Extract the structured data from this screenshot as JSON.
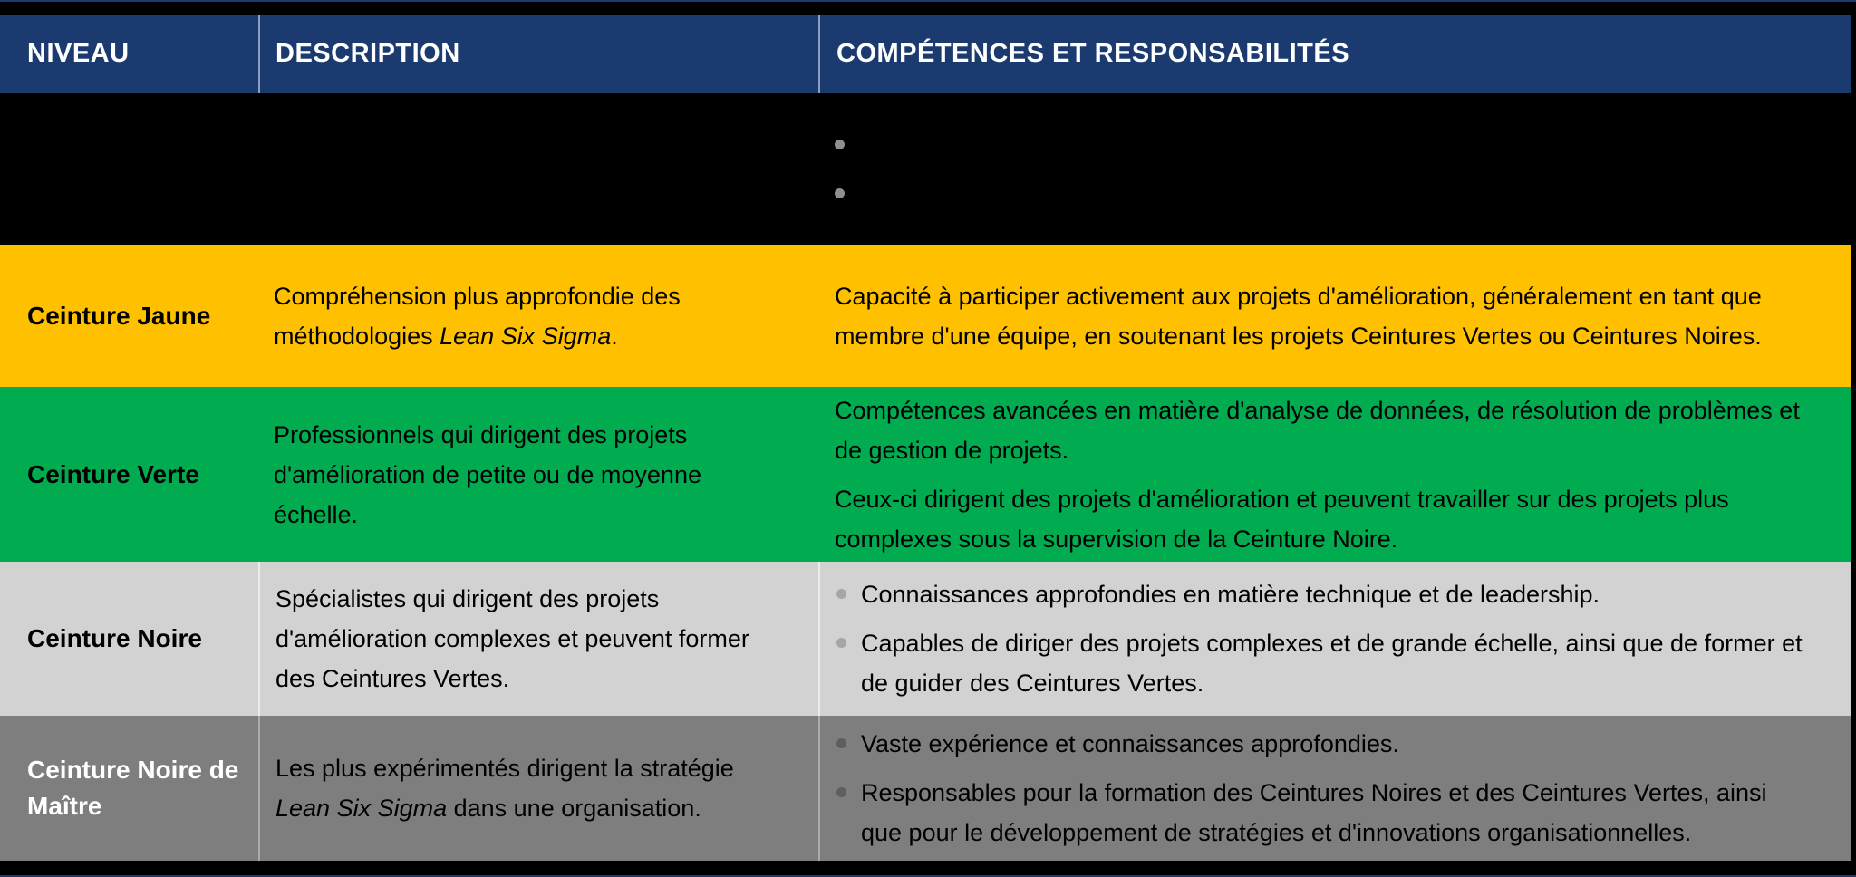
{
  "table": {
    "header": {
      "niveau": "NIVEAU",
      "description": "DESCRIPTION",
      "competences": "COMPÉTENCES ET RESPONSABILITÉS"
    },
    "rows": [
      {
        "level": "",
        "desc_pre": "",
        "desc_italic": "",
        "desc_post": "",
        "items": [
          {
            "bullet": true,
            "text": ""
          },
          {
            "bullet": true,
            "text": ""
          }
        ]
      },
      {
        "level": "Ceinture Jaune",
        "desc_pre": "Compréhension plus approfondie des méthodologies ",
        "desc_italic": "Lean Six Sigma",
        "desc_post": ".",
        "items": [
          {
            "bullet": false,
            "text": "Capacité à participer activement aux projets d'amélioration, généralement en tant que membre d'une équipe, en soutenant les projets Ceintures Vertes ou Ceintures Noires."
          }
        ]
      },
      {
        "level": "Ceinture Verte",
        "desc_pre": "Professionnels qui dirigent des projets d'amélioration de petite ou de moyenne échelle.",
        "desc_italic": "",
        "desc_post": "",
        "items": [
          {
            "bullet": false,
            "text": "Compétences avancées en matière d'analyse de données, de résolution de problèmes et de gestion de projets."
          },
          {
            "bullet": false,
            "text": "Ceux-ci dirigent des projets d'amélioration et peuvent travailler sur des projets plus complexes sous la supervision de la Ceinture Noire."
          }
        ]
      },
      {
        "level": "Ceinture Noire",
        "desc_pre": "Spécialistes qui dirigent des projets d'amélioration complexes et peuvent former des Ceintures Vertes.",
        "desc_italic": "",
        "desc_post": "",
        "items": [
          {
            "bullet": true,
            "text": "Connaissances approfondies en matière technique et de leadership."
          },
          {
            "bullet": true,
            "text": "Capables de diriger des projets complexes et de grande échelle, ainsi que de former et de guider des Ceintures Vertes."
          }
        ]
      },
      {
        "level": "Ceinture Noire de Maître",
        "desc_pre": "Les plus expérimentés dirigent la stratégie ",
        "desc_italic": "Lean Six Sigma",
        "desc_post": " dans une organisation.",
        "items": [
          {
            "bullet": true,
            "text": "Vaste expérience et connaissances approfondies."
          },
          {
            "bullet": true,
            "text": "Responsables pour la formation des Ceintures Noires et des Ceintures Vertes, ainsi que pour le développement de stratégies et d'innovations organisationnelles."
          }
        ]
      }
    ]
  },
  "colors": {
    "frame": "#000000",
    "header_bg": "#1B3A6F",
    "header_text": "#FFFFFF",
    "header_divider": "#8F9CBD",
    "row_blank_bg": "#000000",
    "row_jaune_bg": "#FFC000",
    "row_verte_bg": "#00AC4F",
    "row_noire_bg": "#D2D2D2",
    "row_maitre_bg": "#7E7E7E",
    "row_maitre_level_text": "#FFFFFF",
    "bullet_blank_row": "#8F8F8F",
    "bullet_noire_row": "#A6A6A6",
    "bullet_maitre_row": "#5E5E5E"
  }
}
